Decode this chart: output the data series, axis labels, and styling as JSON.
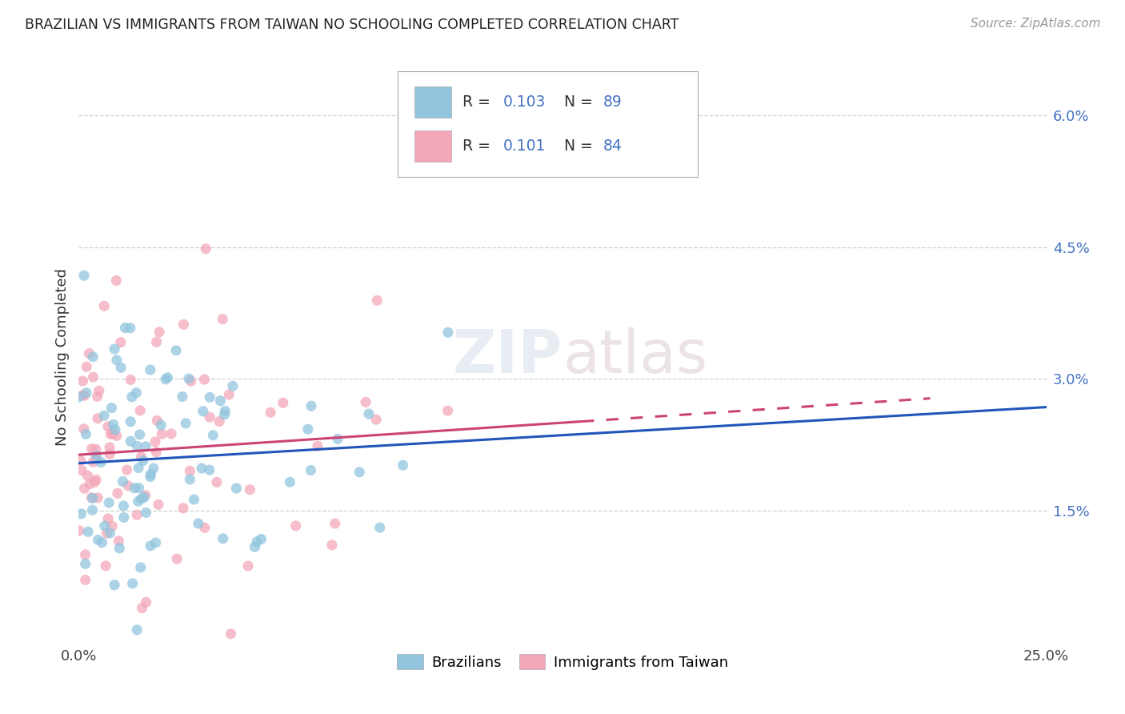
{
  "title": "BRAZILIAN VS IMMIGRANTS FROM TAIWAN NO SCHOOLING COMPLETED CORRELATION CHART",
  "source": "Source: ZipAtlas.com",
  "ylabel": "No Schooling Completed",
  "blue_color": "#92c5de",
  "pink_color": "#f4a7b9",
  "trend_blue": "#2255bb",
  "trend_pink": "#cc4477",
  "background_color": "#ffffff",
  "grid_color": "#cccccc",
  "watermark_zip": "ZIP",
  "watermark_atlas": "atlas",
  "legend_blue_r": "0.103",
  "legend_blue_n": "89",
  "legend_pink_r": "0.101",
  "legend_pink_n": "84",
  "text_color": "#4472c4",
  "title_color": "#222222"
}
